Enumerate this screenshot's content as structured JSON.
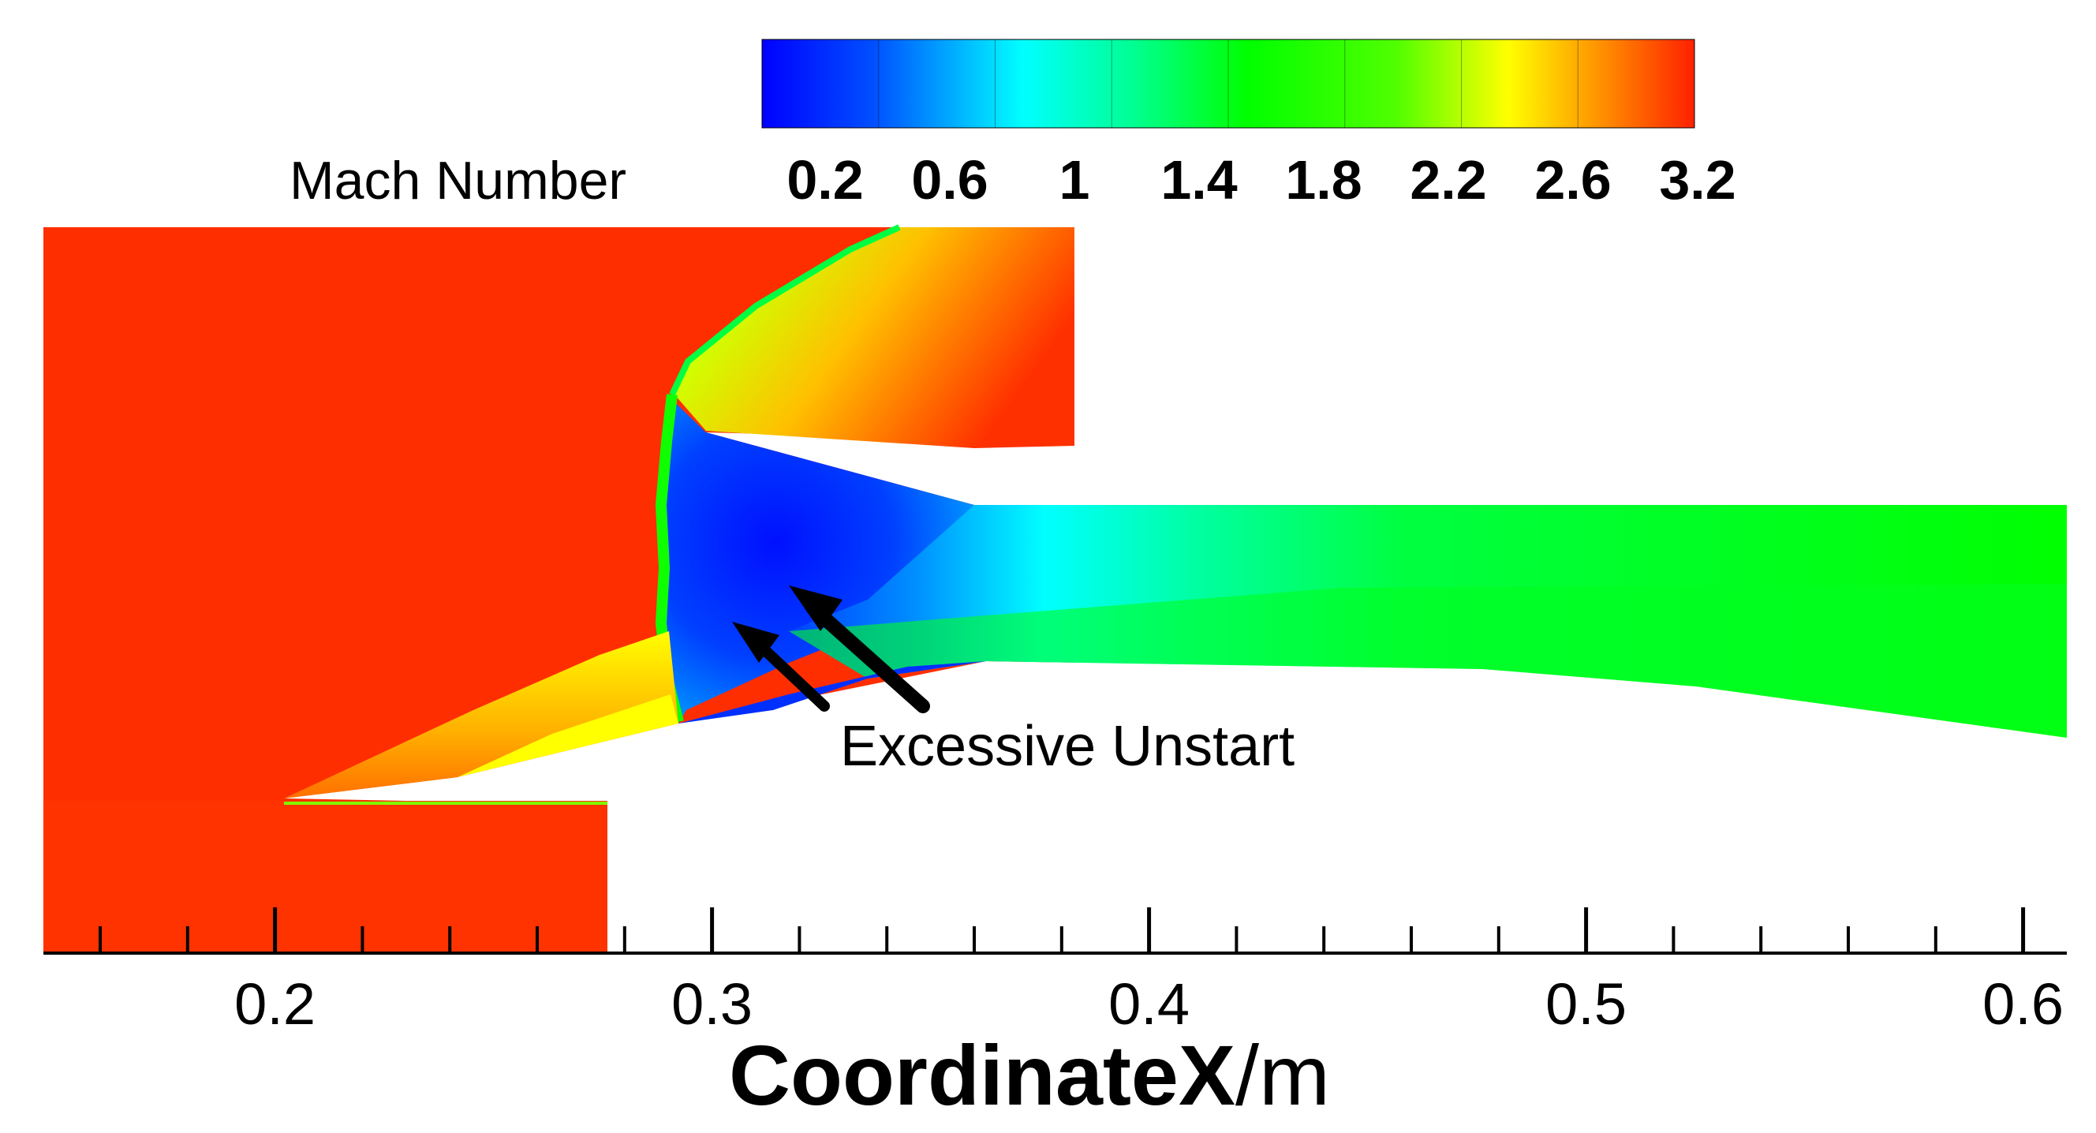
{
  "chart_data": {
    "type": "heatmap",
    "title": "",
    "colorbar": {
      "label": "Mach Number",
      "tick_labels": [
        "0.2",
        "0.6",
        "1",
        "1.4",
        "1.8",
        "2.2",
        "2.6",
        "3.2"
      ],
      "range": [
        0,
        3.2
      ],
      "colormap": [
        "#0000ff",
        "#0050ff",
        "#00ffff",
        "#00ff80",
        "#00ff00",
        "#80ff00",
        "#ffff00",
        "#ffa000",
        "#ff2000"
      ]
    },
    "x_axis": {
      "label_main": "CoordinateX",
      "label_unit": "/m",
      "range": [
        0.147,
        0.61
      ],
      "major_ticks": [
        0.2,
        0.3,
        0.4,
        0.5,
        0.6
      ],
      "tick_labels": [
        "0.2",
        "0.3",
        "0.4",
        "0.5",
        "0.6"
      ],
      "minor_step": 0.02
    },
    "annotation": "Excessive Unstart",
    "colors": {
      "freestream": "#ff2e00",
      "subsonic": "#0040ff",
      "duct_core": "#00ff00"
    }
  }
}
